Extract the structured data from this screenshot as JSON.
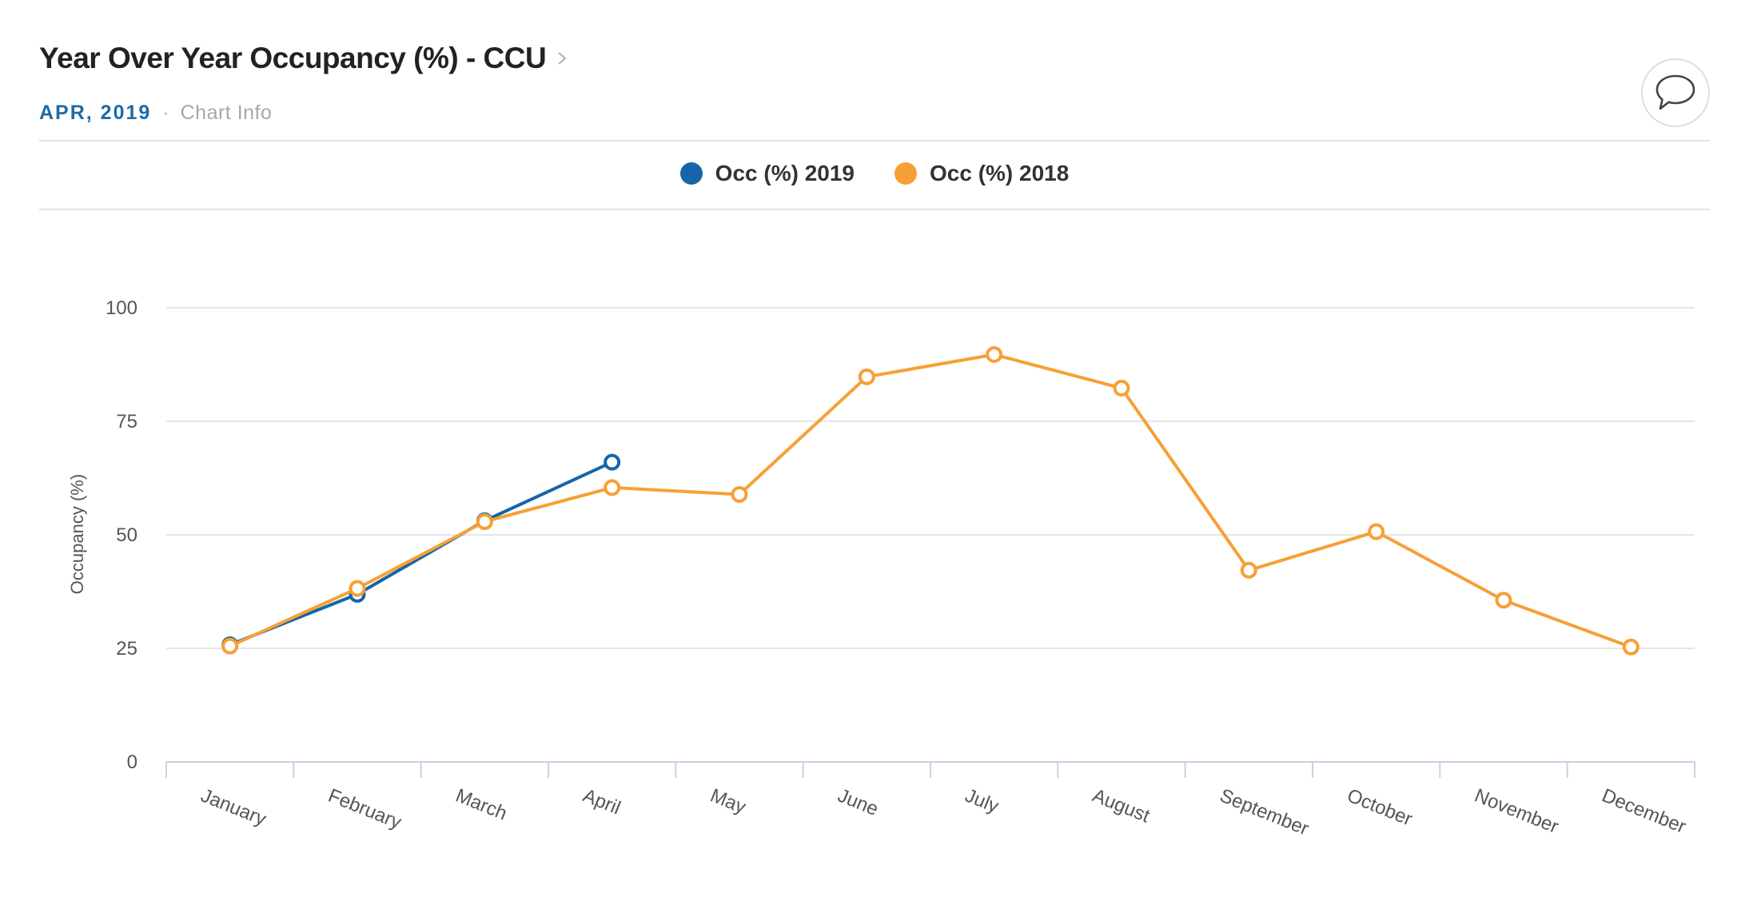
{
  "header": {
    "title": "Year Over Year Occupancy (%) - CCU",
    "period": "APR, 2019",
    "separator": "·",
    "chart_info_label": "Chart Info"
  },
  "colors": {
    "series_2019": "#1565a8",
    "series_2018": "#f7a035",
    "period_text": "#1f6aa5",
    "gridline": "#e6e6e6",
    "axis": "#c5d3e3"
  },
  "icons": {
    "title_chevron": "chevron-right-icon",
    "comment": "speech-bubble-icon"
  },
  "chart_data": {
    "type": "line",
    "title": "",
    "xlabel": "",
    "ylabel": "Occupancy (%)",
    "ylim": [
      0,
      100
    ],
    "yticks": [
      0,
      25,
      50,
      75,
      100
    ],
    "grid": true,
    "legend_position": "top-center",
    "categories": [
      "January",
      "February",
      "March",
      "April",
      "May",
      "June",
      "July",
      "August",
      "September",
      "October",
      "November",
      "December"
    ],
    "series": [
      {
        "name": "Occ (%) 2019",
        "color": "#1565a8",
        "values": [
          25.8,
          36.9,
          53.1,
          66.0,
          null,
          null,
          null,
          null,
          null,
          null,
          null,
          null
        ]
      },
      {
        "name": "Occ (%) 2018",
        "color": "#f7a035",
        "values": [
          25.5,
          38.2,
          52.9,
          60.4,
          58.9,
          84.8,
          89.7,
          82.3,
          42.2,
          50.7,
          35.6,
          25.3
        ]
      }
    ]
  }
}
